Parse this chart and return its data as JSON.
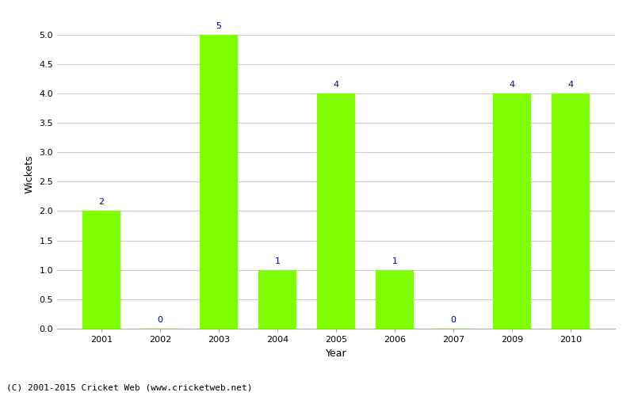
{
  "categories": [
    "2001",
    "2002",
    "2003",
    "2004",
    "2005",
    "2006",
    "2007",
    "2009",
    "2010"
  ],
  "values": [
    2,
    0,
    5,
    1,
    4,
    1,
    0,
    4,
    4
  ],
  "bar_color": "#7fff00",
  "bar_edge_color": "#7fff00",
  "label_color": "#00008b",
  "xlabel": "Year",
  "ylabel": "Wickets",
  "ylim": [
    0.0,
    5.25
  ],
  "yticks": [
    0.0,
    0.5,
    1.0,
    1.5,
    2.0,
    2.5,
    3.0,
    3.5,
    4.0,
    4.5,
    5.0
  ],
  "footnote": "(C) 2001-2015 Cricket Web (www.cricketweb.net)",
  "background_color": "#ffffff",
  "grid_color": "#cccccc",
  "label_fontsize": 8,
  "axis_label_fontsize": 9,
  "tick_fontsize": 8,
  "footnote_fontsize": 8,
  "bar_width": 0.65
}
